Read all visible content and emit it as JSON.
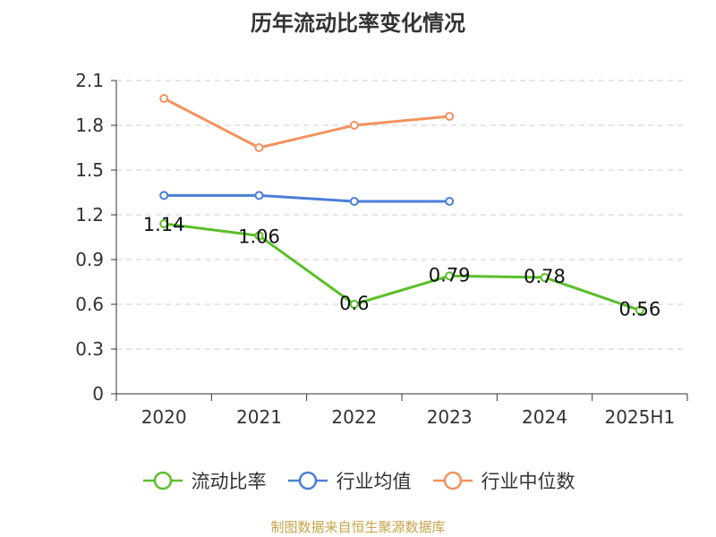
{
  "title": "历年流动比率变化情况",
  "source": "制图数据来自恒生聚源数据库",
  "colors": {
    "current_ratio": "#5bbf2a",
    "industry_mean": "#4a7fd6",
    "industry_median": "#f4925e",
    "grid": "#cccccc",
    "axis": "#333333"
  },
  "chart_data": {
    "type": "line",
    "title": "历年流动比率变化情况",
    "categories": [
      "2020",
      "2021",
      "2022",
      "2023",
      "2024",
      "2025H1"
    ],
    "ylim": [
      0,
      2.1
    ],
    "yticks": [
      "0",
      "0.3",
      "0.6",
      "0.9",
      "1.2",
      "1.5",
      "1.8",
      "2.1"
    ],
    "grid": true,
    "legend": "bottom",
    "series": [
      {
        "name": "流动比率",
        "values": [
          1.14,
          1.06,
          0.6,
          0.79,
          0.78,
          0.56
        ],
        "labels": [
          "1.14",
          "1.06",
          "0.6",
          "0.79",
          "0.78",
          "0.56"
        ],
        "color": "#5bbf2a"
      },
      {
        "name": "行业均值",
        "values": [
          1.33,
          1.33,
          1.29,
          1.29,
          null,
          null
        ],
        "color": "#4a7fd6"
      },
      {
        "name": "行业中位数",
        "values": [
          1.98,
          1.65,
          1.8,
          1.86,
          null,
          null
        ],
        "color": "#f4925e"
      }
    ]
  }
}
